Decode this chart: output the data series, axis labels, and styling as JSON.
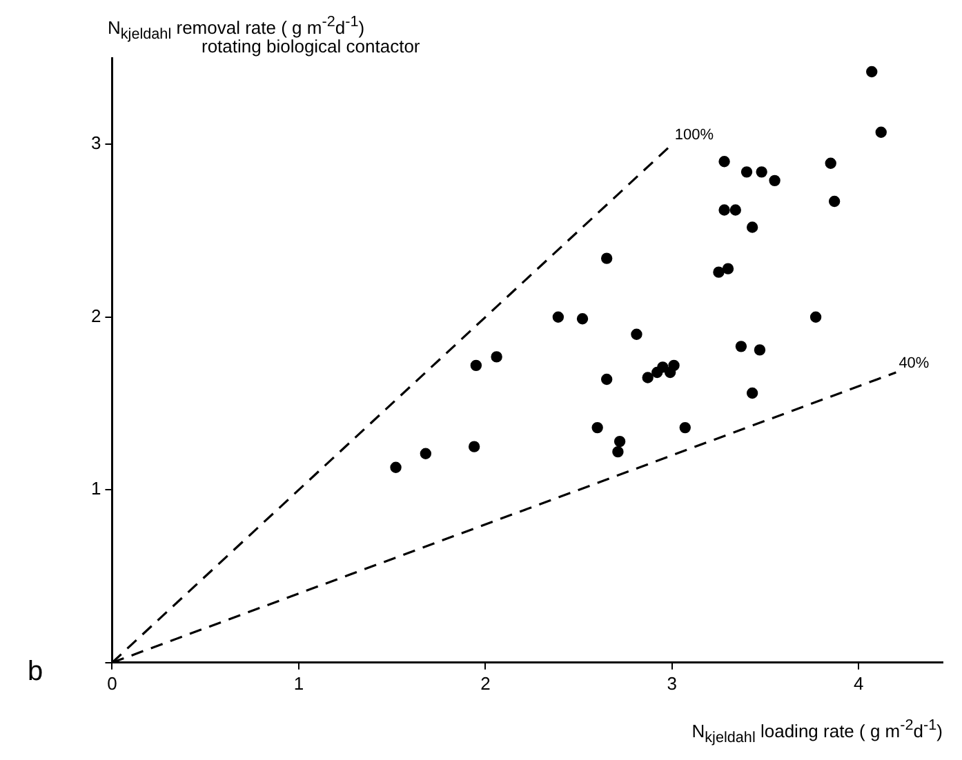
{
  "chart_data": {
    "type": "scatter",
    "ylabel": "N$_{kjeldahl}$ removal rate ( g m$^{-2}$d$^{-1}$)",
    "subtitle": "rotating biological contactor",
    "xlabel": "N$_{kjeldahl}$ loading rate ( g m$^{-2}$d$^{-1}$)",
    "annotations": [
      "b"
    ],
    "xlim": [
      0,
      4.45
    ],
    "ylim": [
      0,
      3.5
    ],
    "xticks": [
      0,
      1,
      2,
      3,
      4
    ],
    "yticks": [
      {
        "value": 0,
        "label": null
      },
      1,
      2,
      3
    ],
    "grid": false,
    "legend": false,
    "marker": "circle",
    "series": [
      {
        "color": "#000000",
        "x": [
          4.07,
          4.12,
          3.28,
          3.4,
          3.48,
          3.55,
          3.85,
          3.87,
          3.28,
          3.34,
          3.43,
          2.65,
          3.25,
          3.3,
          2.39,
          2.52,
          3.77,
          2.81,
          3.37,
          3.47,
          2.65,
          2.87,
          2.92,
          2.95,
          2.99,
          3.01,
          3.43,
          2.6,
          3.07,
          2.72,
          2.71,
          1.95,
          2.06,
          1.52,
          1.68,
          1.94
        ],
        "values": [
          3.42,
          3.07,
          2.9,
          2.84,
          2.84,
          2.79,
          2.89,
          2.67,
          2.62,
          2.62,
          2.52,
          2.34,
          2.26,
          2.28,
          2.0,
          1.99,
          2.0,
          1.9,
          1.83,
          1.81,
          1.64,
          1.65,
          1.68,
          1.71,
          1.68,
          1.72,
          1.56,
          1.36,
          1.36,
          1.28,
          1.22,
          1.72,
          1.77,
          1.13,
          1.21,
          1.25
        ]
      },
      {
        "type": "line",
        "name": "100%",
        "color": "#000000",
        "line_style": "dashed",
        "marker": "none",
        "x": [
          0,
          3.0
        ],
        "values": [
          0,
          3.0
        ]
      },
      {
        "type": "line",
        "name": "40%",
        "color": "#000000",
        "line_style": "dashed",
        "marker": "none",
        "x": [
          0,
          4.2
        ],
        "values": [
          0,
          1.68
        ]
      }
    ]
  }
}
